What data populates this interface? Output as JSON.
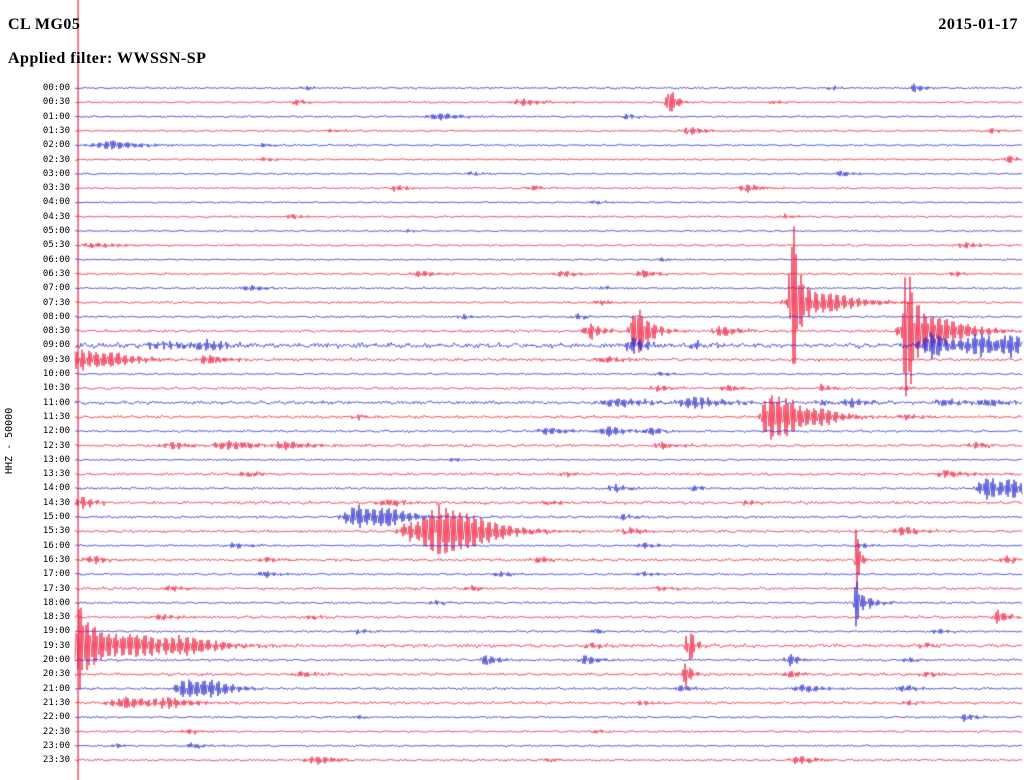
{
  "header": {
    "station": "CL MG05",
    "date": "2015-01-17",
    "filter_label": "Applied filter: WWSSN-SP"
  },
  "y_axis_label": "HHZ - 50000",
  "colors": {
    "red": "#ee1133",
    "blue": "#2222cc"
  },
  "chart_data": {
    "type": "line",
    "subtype": "helicorder-seismogram",
    "title": "CL MG05",
    "date": "2015-01-17",
    "filter": "WWSSN-SP",
    "channel": "HHZ",
    "gain_scale": "50000",
    "row_interval_minutes": 30,
    "trace_color_rule": "hour rows blue, half-hour rows red",
    "full_height_line": {
      "color": "red",
      "pos": 0.0032
    },
    "rows": [
      {
        "t": "00:00",
        "c": "b",
        "n": 0.9,
        "e": [
          [
            0.245,
            2,
            0.01
          ],
          [
            0.8,
            2.5,
            0.008
          ],
          [
            0.887,
            4.5,
            0.01
          ]
        ]
      },
      {
        "t": "00:30",
        "c": "r",
        "n": 0.9,
        "e": [
          [
            0.235,
            2.5,
            0.012
          ],
          [
            0.475,
            3.5,
            0.02
          ],
          [
            0.628,
            16,
            0.006
          ],
          [
            0.74,
            2,
            0.01
          ]
        ]
      },
      {
        "t": "01:00",
        "c": "b",
        "n": 0.9,
        "e": [
          [
            0.385,
            4,
            0.018
          ],
          [
            0.583,
            2.5,
            0.012
          ]
        ]
      },
      {
        "t": "01:30",
        "c": "r",
        "n": 0.9,
        "e": [
          [
            0.27,
            2,
            0.01
          ],
          [
            0.65,
            4,
            0.015
          ],
          [
            0.968,
            2.5,
            0.01
          ]
        ]
      },
      {
        "t": "02:00",
        "c": "b",
        "n": 0.9,
        "e": [
          [
            0.037,
            4.5,
            0.03
          ],
          [
            0.2,
            2,
            0.01
          ]
        ]
      },
      {
        "t": "02:30",
        "c": "r",
        "n": 0.9,
        "e": [
          [
            0.2,
            2,
            0.012
          ],
          [
            0.985,
            5,
            0.006
          ]
        ]
      },
      {
        "t": "03:00",
        "c": "b",
        "n": 0.8,
        "e": [
          [
            0.42,
            2,
            0.01
          ],
          [
            0.81,
            3.5,
            0.01
          ]
        ]
      },
      {
        "t": "03:30",
        "c": "r",
        "n": 0.9,
        "e": [
          [
            0.34,
            3.5,
            0.01
          ],
          [
            0.485,
            2.5,
            0.012
          ],
          [
            0.71,
            4,
            0.015
          ]
        ]
      },
      {
        "t": "04:00",
        "c": "b",
        "n": 0.8,
        "e": [
          [
            0.55,
            2,
            0.01
          ]
        ]
      },
      {
        "t": "04:30",
        "c": "r",
        "n": 0.9,
        "e": [
          [
            0.23,
            2.5,
            0.012
          ],
          [
            0.75,
            2.5,
            0.01
          ]
        ]
      },
      {
        "t": "05:00",
        "c": "b",
        "n": 0.8,
        "e": [
          [
            0.35,
            2,
            0.01
          ]
        ]
      },
      {
        "t": "05:30",
        "c": "r",
        "n": 1.0,
        "e": [
          [
            0.02,
            3,
            0.02
          ],
          [
            0.94,
            3,
            0.015
          ]
        ]
      },
      {
        "t": "06:00",
        "c": "b",
        "n": 0.8,
        "e": [
          [
            0.62,
            2,
            0.01
          ]
        ]
      },
      {
        "t": "06:30",
        "c": "r",
        "n": 1.0,
        "e": [
          [
            0.365,
            3.5,
            0.015
          ],
          [
            0.515,
            3.5,
            0.015
          ],
          [
            0.6,
            4,
            0.012
          ],
          [
            0.93,
            2.5,
            0.01
          ]
        ]
      },
      {
        "t": "07:00",
        "c": "b",
        "n": 0.9,
        "e": [
          [
            0.185,
            3.5,
            0.015
          ],
          [
            0.56,
            2,
            0.01
          ]
        ]
      },
      {
        "t": "07:30",
        "c": "r",
        "n": 1.1,
        "e": [
          [
            0.555,
            3,
            0.01
          ],
          [
            0.757,
            110,
            0.004
          ],
          [
            0.768,
            14,
            0.025
          ],
          [
            0.8,
            5,
            0.03
          ]
        ]
      },
      {
        "t": "08:00",
        "c": "b",
        "n": 1.0,
        "e": [
          [
            0.41,
            2.5,
            0.012
          ],
          [
            0.53,
            2.5,
            0.012
          ]
        ]
      },
      {
        "t": "08:30",
        "c": "r",
        "n": 1.2,
        "e": [
          [
            0.545,
            8,
            0.012
          ],
          [
            0.594,
            26,
            0.012
          ],
          [
            0.683,
            6,
            0.015
          ],
          [
            0.878,
            85,
            0.004
          ],
          [
            0.885,
            26,
            0.02
          ],
          [
            0.92,
            8,
            0.03
          ]
        ]
      },
      {
        "t": "09:00",
        "c": "b",
        "n": 2.3,
        "e": [
          [
            0.09,
            4,
            0.03
          ],
          [
            0.14,
            4,
            0.02
          ],
          [
            0.59,
            9,
            0.012
          ],
          [
            0.655,
            4,
            0.01
          ],
          [
            0.905,
            13,
            0.02
          ],
          [
            0.955,
            11,
            0.025
          ],
          [
            0.99,
            8,
            0.015
          ]
        ]
      },
      {
        "t": "09:30",
        "c": "r",
        "n": 1.4,
        "e": [
          [
            0.006,
            11,
            0.02
          ],
          [
            0.04,
            5,
            0.03
          ],
          [
            0.14,
            5,
            0.015
          ],
          [
            0.56,
            3,
            0.02
          ]
        ]
      },
      {
        "t": "10:00",
        "c": "b",
        "n": 0.9,
        "e": [
          [
            0.62,
            2.5,
            0.01
          ]
        ]
      },
      {
        "t": "10:30",
        "c": "r",
        "n": 1.2,
        "e": [
          [
            0.615,
            3.5,
            0.012
          ],
          [
            0.69,
            3.5,
            0.012
          ],
          [
            0.79,
            3.5,
            0.01
          ],
          [
            0.875,
            2.5,
            0.01
          ]
        ]
      },
      {
        "t": "11:00",
        "c": "b",
        "n": 1.6,
        "e": [
          [
            0.575,
            5,
            0.03
          ],
          [
            0.655,
            5.5,
            0.025
          ],
          [
            0.79,
            3,
            0.012
          ],
          [
            0.82,
            4,
            0.015
          ],
          [
            0.92,
            3.5,
            0.02
          ],
          [
            0.965,
            3.5,
            0.015
          ]
        ]
      },
      {
        "t": "11:30",
        "c": "r",
        "n": 1.3,
        "e": [
          [
            0.3,
            2.5,
            0.012
          ],
          [
            0.733,
            28,
            0.012
          ],
          [
            0.755,
            14,
            0.02
          ],
          [
            0.79,
            6,
            0.02
          ],
          [
            0.88,
            3,
            0.015
          ]
        ]
      },
      {
        "t": "12:00",
        "c": "b",
        "n": 1.1,
        "e": [
          [
            0.5,
            4,
            0.02
          ],
          [
            0.565,
            5,
            0.018
          ],
          [
            0.61,
            3,
            0.012
          ]
        ]
      },
      {
        "t": "12:30",
        "c": "r",
        "n": 1.3,
        "e": [
          [
            0.105,
            4,
            0.02
          ],
          [
            0.165,
            4.5,
            0.025
          ],
          [
            0.225,
            4,
            0.02
          ],
          [
            0.62,
            3.5,
            0.015
          ],
          [
            0.95,
            3,
            0.012
          ]
        ]
      },
      {
        "t": "13:00",
        "c": "b",
        "n": 0.9,
        "e": [
          [
            0.4,
            2,
            0.01
          ]
        ]
      },
      {
        "t": "13:30",
        "c": "r",
        "n": 1.3,
        "e": [
          [
            0.18,
            3,
            0.015
          ],
          [
            0.52,
            2.5,
            0.012
          ],
          [
            0.92,
            4,
            0.02
          ]
        ]
      },
      {
        "t": "14:00",
        "c": "b",
        "n": 1.1,
        "e": [
          [
            0.57,
            4.5,
            0.012
          ],
          [
            0.655,
            3,
            0.01
          ],
          [
            0.965,
            12,
            0.018
          ],
          [
            0.99,
            7,
            0.012
          ]
        ]
      },
      {
        "t": "14:30",
        "c": "r",
        "n": 1.4,
        "e": [
          [
            0.008,
            6,
            0.012
          ],
          [
            0.33,
            4,
            0.02
          ],
          [
            0.5,
            2.5,
            0.012
          ],
          [
            0.71,
            2.5,
            0.012
          ]
        ]
      },
      {
        "t": "15:00",
        "c": "b",
        "n": 1.2,
        "e": [
          [
            0.3,
            12,
            0.025
          ],
          [
            0.33,
            6,
            0.02
          ],
          [
            0.58,
            3,
            0.012
          ]
        ]
      },
      {
        "t": "15:30",
        "c": "r",
        "n": 1.3,
        "e": [
          [
            0.355,
            10,
            0.02
          ],
          [
            0.385,
            26,
            0.025
          ],
          [
            0.42,
            10,
            0.03
          ],
          [
            0.585,
            4,
            0.015
          ],
          [
            0.875,
            5,
            0.015
          ]
        ]
      },
      {
        "t": "16:00",
        "c": "b",
        "n": 1.0,
        "e": [
          [
            0.17,
            3,
            0.015
          ],
          [
            0.6,
            3,
            0.012
          ],
          [
            0.83,
            3,
            0.01
          ]
        ]
      },
      {
        "t": "16:30",
        "c": "r",
        "n": 1.2,
        "e": [
          [
            0.02,
            4,
            0.015
          ],
          [
            0.2,
            3,
            0.012
          ],
          [
            0.49,
            3.5,
            0.012
          ],
          [
            0.825,
            40,
            0.003
          ],
          [
            0.985,
            4,
            0.01
          ]
        ]
      },
      {
        "t": "17:00",
        "c": "b",
        "n": 1.0,
        "e": [
          [
            0.2,
            3.5,
            0.012
          ],
          [
            0.45,
            3,
            0.015
          ],
          [
            0.6,
            2.5,
            0.01
          ]
        ]
      },
      {
        "t": "17:30",
        "c": "r",
        "n": 1.2,
        "e": [
          [
            0.1,
            3,
            0.015
          ],
          [
            0.42,
            2.5,
            0.012
          ],
          [
            0.62,
            2.5,
            0.012
          ]
        ]
      },
      {
        "t": "18:00",
        "c": "b",
        "n": 1.0,
        "e": [
          [
            0.38,
            2.5,
            0.012
          ],
          [
            0.825,
            26,
            0.004
          ],
          [
            0.84,
            4,
            0.015
          ]
        ]
      },
      {
        "t": "18:30",
        "c": "r",
        "n": 1.2,
        "e": [
          [
            0.09,
            3.5,
            0.015
          ],
          [
            0.25,
            2.5,
            0.012
          ],
          [
            0.975,
            8,
            0.008
          ]
        ]
      },
      {
        "t": "19:00",
        "c": "b",
        "n": 1.0,
        "e": [
          [
            0.3,
            2.5,
            0.012
          ],
          [
            0.55,
            2.5,
            0.01
          ],
          [
            0.91,
            3,
            0.01
          ]
        ]
      },
      {
        "t": "19:30",
        "c": "r",
        "n": 1.6,
        "e": [
          [
            0.004,
            45,
            0.006
          ],
          [
            0.02,
            16,
            0.03
          ],
          [
            0.07,
            8,
            0.04
          ],
          [
            0.12,
            6,
            0.03
          ],
          [
            0.545,
            3,
            0.012
          ],
          [
            0.648,
            22,
            0.005
          ],
          [
            0.9,
            3,
            0.012
          ]
        ]
      },
      {
        "t": "20:00",
        "c": "b",
        "n": 1.1,
        "e": [
          [
            0.435,
            6,
            0.01
          ],
          [
            0.54,
            5,
            0.012
          ],
          [
            0.755,
            7,
            0.008
          ],
          [
            0.88,
            3,
            0.01
          ]
        ]
      },
      {
        "t": "20:30",
        "c": "r",
        "n": 1.3,
        "e": [
          [
            0.24,
            3.5,
            0.015
          ],
          [
            0.645,
            14,
            0.005
          ],
          [
            0.755,
            4,
            0.012
          ],
          [
            0.9,
            3,
            0.012
          ]
        ]
      },
      {
        "t": "21:00",
        "c": "b",
        "n": 1.1,
        "e": [
          [
            0.118,
            10,
            0.02
          ],
          [
            0.145,
            6,
            0.02
          ],
          [
            0.64,
            4,
            0.01
          ],
          [
            0.77,
            4.5,
            0.015
          ],
          [
            0.875,
            4,
            0.012
          ]
        ]
      },
      {
        "t": "21:30",
        "c": "r",
        "n": 1.3,
        "e": [
          [
            0.055,
            6,
            0.03
          ],
          [
            0.1,
            4,
            0.02
          ],
          [
            0.6,
            2.5,
            0.012
          ],
          [
            0.88,
            3,
            0.01
          ]
        ]
      },
      {
        "t": "22:00",
        "c": "b",
        "n": 1.0,
        "e": [
          [
            0.3,
            2,
            0.01
          ],
          [
            0.94,
            4,
            0.012
          ]
        ]
      },
      {
        "t": "22:30",
        "c": "r",
        "n": 1.0,
        "e": [
          [
            0.12,
            2.5,
            0.012
          ],
          [
            0.55,
            2,
            0.01
          ]
        ]
      },
      {
        "t": "23:00",
        "c": "b",
        "n": 0.9,
        "e": [
          [
            0.045,
            2.5,
            0.01
          ],
          [
            0.125,
            3,
            0.012
          ]
        ]
      },
      {
        "t": "23:30",
        "c": "r",
        "n": 1.0,
        "e": [
          [
            0.255,
            4,
            0.02
          ],
          [
            0.5,
            2,
            0.01
          ],
          [
            0.765,
            4.5,
            0.015
          ]
        ]
      }
    ]
  }
}
